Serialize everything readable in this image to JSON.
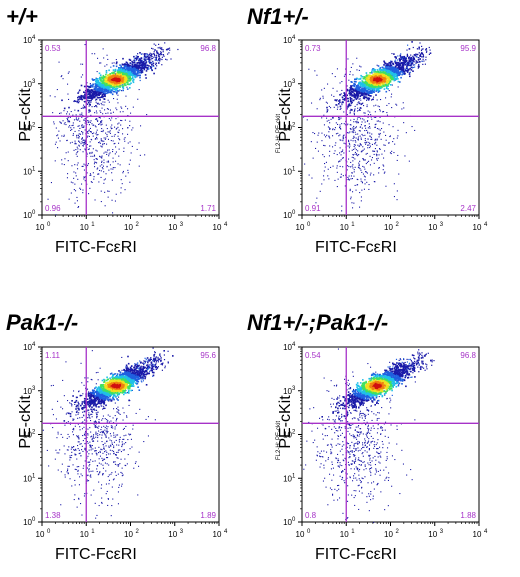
{
  "figure": {
    "x_axis_label": "FITC-FcεRI",
    "y_axis_label": "PE-cKit",
    "tick_labels": [
      "10",
      "10",
      "10",
      "10",
      "10"
    ],
    "tick_exponents": [
      "0",
      "1",
      "2",
      "3",
      "4"
    ],
    "quadrant_color": "#a632c8",
    "density_colors": [
      "#1a1aa8",
      "#2060e0",
      "#20c0e8",
      "#40e060",
      "#f0e020",
      "#f08010",
      "#d01010"
    ]
  },
  "chart_data": [
    {
      "type": "scatter",
      "title": "+/+",
      "xlabel": "FITC-FcεRI",
      "ylabel": "PE-cKit",
      "xscale": "log",
      "yscale": "log",
      "xlim": [
        1,
        10000
      ],
      "ylim": [
        1,
        10000
      ],
      "quadrant_gate": {
        "x": 10,
        "y": 180
      },
      "quadrants": {
        "upper_left": "0.53",
        "upper_right": "96.8",
        "lower_left": "0.96",
        "lower_right": "1.71"
      },
      "inner_ylabel": "",
      "population_center": {
        "x": 45,
        "y": 1300
      }
    },
    {
      "type": "scatter",
      "title": "Nf1+/-",
      "xlabel": "FITC-FcεRI",
      "ylabel": "PE-cKit",
      "xscale": "log",
      "yscale": "log",
      "xlim": [
        1,
        10000
      ],
      "ylim": [
        1,
        10000
      ],
      "quadrant_gate": {
        "x": 10,
        "y": 180
      },
      "quadrants": {
        "upper_left": "0.73",
        "upper_right": "95.9",
        "lower_left": "0.91",
        "lower_right": "2.47"
      },
      "inner_ylabel": "FL2-H: PE-ckit",
      "population_center": {
        "x": 50,
        "y": 1300
      }
    },
    {
      "type": "scatter",
      "title": "Pak1-/-",
      "xlabel": "FITC-FcεRI",
      "ylabel": "PE-cKit",
      "xscale": "log",
      "yscale": "log",
      "xlim": [
        1,
        10000
      ],
      "ylim": [
        1,
        10000
      ],
      "quadrant_gate": {
        "x": 10,
        "y": 180
      },
      "quadrants": {
        "upper_left": "1.11",
        "upper_right": "95.6",
        "lower_left": "1.38",
        "lower_right": "1.89"
      },
      "inner_ylabel": "",
      "population_center": {
        "x": 45,
        "y": 1350
      }
    },
    {
      "type": "scatter",
      "title": "Nf1+/-;Pak1-/-",
      "xlabel": "FITC-FcεRI",
      "ylabel": "PE-cKit",
      "xscale": "log",
      "yscale": "log",
      "xlim": [
        1,
        10000
      ],
      "ylim": [
        1,
        10000
      ],
      "quadrant_gate": {
        "x": 10,
        "y": 180
      },
      "quadrants": {
        "upper_left": "0.54",
        "upper_right": "96.8",
        "lower_left": "0.8",
        "lower_right": "1.88"
      },
      "inner_ylabel": "FL2-H: PE-ckit",
      "population_center": {
        "x": 48,
        "y": 1350
      }
    }
  ]
}
